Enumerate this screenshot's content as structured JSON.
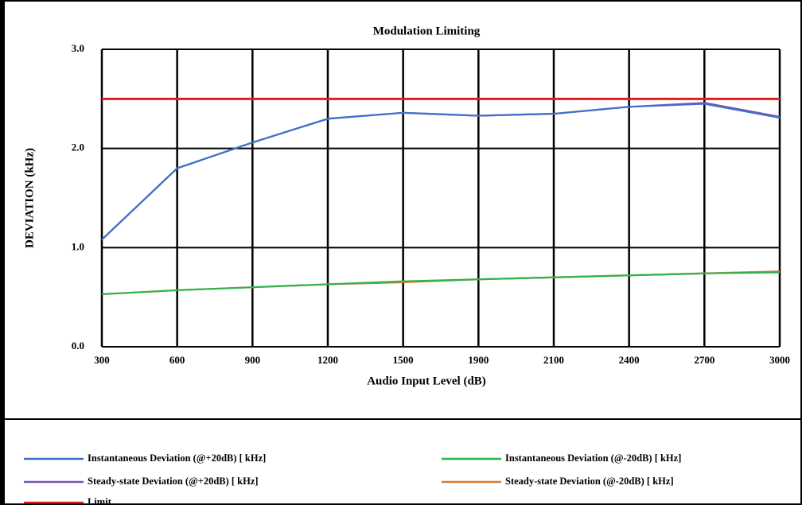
{
  "chart_data": {
    "type": "line",
    "title": "Modulation Limiting",
    "x_label": "Audio Input Level (dB)",
    "y_label": "DEVIATION (kHz)",
    "categories": [
      "300",
      "600",
      "900",
      "1200",
      "1500",
      "1900",
      "2100",
      "2400",
      "2700",
      "3000"
    ],
    "ylim": [
      0,
      3
    ],
    "yticks": [
      {
        "value": 0,
        "label": "0.0"
      },
      {
        "value": 1,
        "label": "1.0"
      },
      {
        "value": 2,
        "label": "2.0"
      },
      {
        "value": 3,
        "label": "3.0"
      }
    ],
    "grid": true,
    "legend": "bottom",
    "series": [
      {
        "name": "Instantaneous Deviation (@+20dB) [ kHz]",
        "color": "#3f72c8",
        "values": [
          1.08,
          1.8,
          2.06,
          2.3,
          2.36,
          2.33,
          2.35,
          2.42,
          2.45,
          2.31
        ]
      },
      {
        "name": "Instantaneous Deviation (@-20dB) [ kHz]",
        "color": "#2fb350",
        "values": [
          0.53,
          0.57,
          0.6,
          0.63,
          0.66,
          0.68,
          0.7,
          0.72,
          0.74,
          0.75
        ]
      },
      {
        "name": "Steady-state Deviation (@+20dB) [ kHz]",
        "color": "#7b4fba",
        "values": [
          1.08,
          1.8,
          2.06,
          2.3,
          2.36,
          2.33,
          2.35,
          2.42,
          2.46,
          2.32
        ]
      },
      {
        "name": "Steady-state Deviation (@-20dB) [ kHz]",
        "color": "#e0782a",
        "values": [
          0.53,
          0.57,
          0.6,
          0.63,
          0.65,
          0.68,
          0.7,
          0.72,
          0.74,
          0.76
        ]
      },
      {
        "name": "Limit",
        "color": "#e02020",
        "values": [
          2.5,
          2.5,
          2.5,
          2.5,
          2.5,
          2.5,
          2.5,
          2.5,
          2.5,
          2.5
        ]
      }
    ]
  }
}
